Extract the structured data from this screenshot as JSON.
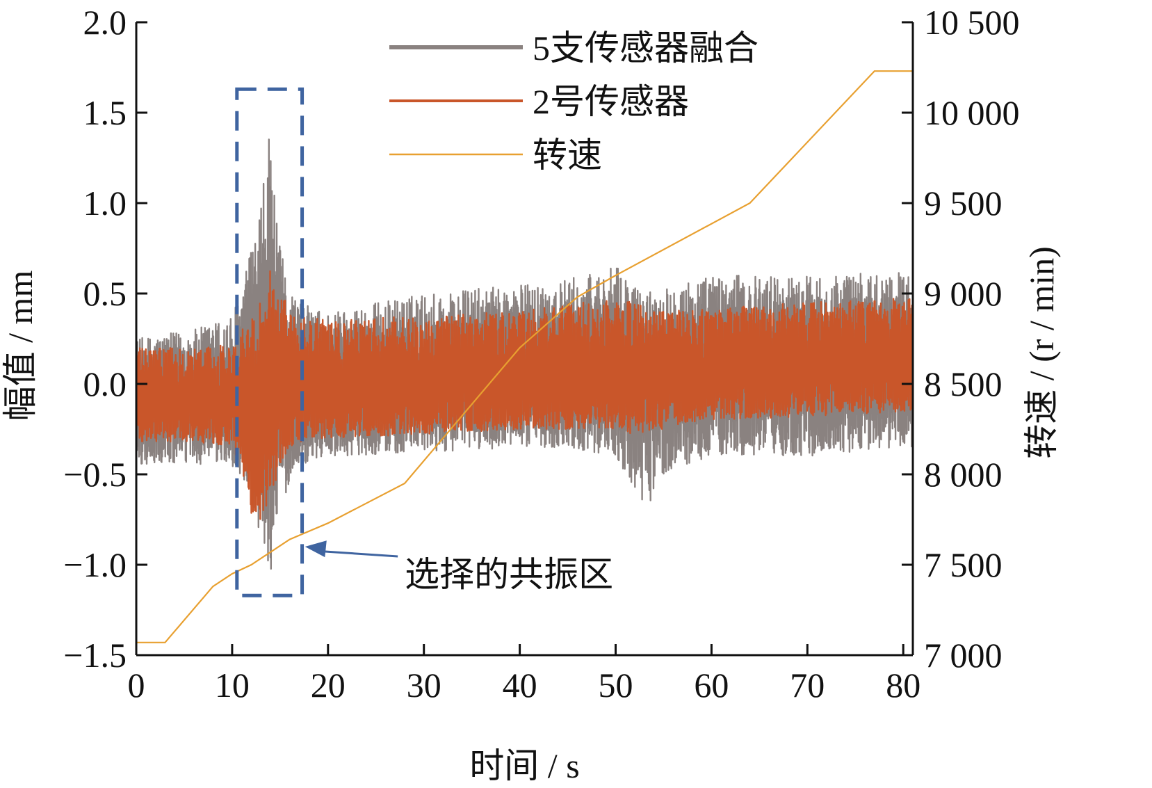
{
  "chart_data": {
    "type": "line",
    "xlabel": "时间 / s",
    "ylabel_left": "幅值 / mm",
    "ylabel_right": "转速 / (r / min)",
    "xlim": [
      0,
      81
    ],
    "xticks": [
      0,
      10,
      20,
      30,
      40,
      50,
      60,
      70,
      80
    ],
    "xtick_labels": [
      "0",
      "10",
      "20",
      "30",
      "40",
      "50",
      "60",
      "70",
      "80"
    ],
    "ylim_left": [
      -1.5,
      2.0
    ],
    "yticks_left": [
      -1.5,
      -1.0,
      -0.5,
      0.0,
      0.5,
      1.0,
      1.5,
      2.0
    ],
    "ytick_labels_left": [
      "−1.5",
      "−1.0",
      "−0.5",
      "0.0",
      "0.5",
      "1.0",
      "1.5",
      "2.0"
    ],
    "ylim_right": [
      7000,
      10500
    ],
    "yticks_right": [
      7000,
      7500,
      8000,
      8500,
      9000,
      9500,
      10000,
      10500
    ],
    "ytick_labels_right": [
      "7 000",
      "7 500",
      "8 000",
      "8 500",
      "9 000",
      "9 500",
      "10 000",
      "10 500"
    ],
    "legend_placement": "top-center",
    "grid": false,
    "series": [
      {
        "name": "5支传感器融合",
        "axis": "left",
        "color": "#8a8280",
        "kind": "vibration",
        "envelope_t": [
          0,
          6,
          10,
          11,
          12,
          13,
          13.5,
          14,
          14.5,
          15,
          16,
          17,
          20,
          30,
          40,
          45,
          50,
          52,
          53,
          55,
          60,
          70,
          81
        ],
        "envelope_upper": [
          0.25,
          0.3,
          0.38,
          0.55,
          0.75,
          1.0,
          1.2,
          1.52,
          0.95,
          0.75,
          0.55,
          0.45,
          0.4,
          0.5,
          0.55,
          0.58,
          0.65,
          0.55,
          0.5,
          0.55,
          0.6,
          0.6,
          0.62
        ],
        "envelope_lower": [
          -0.45,
          -0.45,
          -0.45,
          -0.55,
          -0.7,
          -0.85,
          -0.95,
          -1.05,
          -0.85,
          -0.7,
          -0.55,
          -0.45,
          -0.4,
          -0.38,
          -0.35,
          -0.35,
          -0.4,
          -0.6,
          -0.72,
          -0.5,
          -0.4,
          -0.4,
          -0.35
        ],
        "center_t": [
          0,
          10,
          12,
          14,
          16,
          20,
          40,
          60,
          81
        ],
        "center": [
          -0.1,
          -0.1,
          -0.15,
          -0.2,
          -0.05,
          -0.05,
          0.0,
          0.05,
          0.1
        ]
      },
      {
        "name": "2号传感器",
        "axis": "left",
        "color": "#c9562a",
        "kind": "vibration",
        "envelope_t": [
          0,
          6,
          10,
          11,
          12,
          13,
          13.5,
          14,
          14.5,
          15,
          16,
          17,
          20,
          30,
          40,
          50,
          52,
          55,
          60,
          70,
          81
        ],
        "envelope_upper": [
          0.2,
          0.2,
          0.22,
          0.3,
          0.4,
          0.5,
          0.55,
          0.68,
          0.55,
          0.5,
          0.45,
          0.38,
          0.35,
          0.38,
          0.4,
          0.48,
          0.45,
          0.4,
          0.42,
          0.45,
          0.48
        ],
        "envelope_lower": [
          -0.32,
          -0.32,
          -0.35,
          -0.5,
          -0.75,
          -0.75,
          -0.72,
          -0.65,
          -0.55,
          -0.45,
          -0.35,
          -0.32,
          -0.3,
          -0.28,
          -0.25,
          -0.25,
          -0.28,
          -0.25,
          -0.2,
          -0.18,
          -0.15
        ],
        "center_t": [
          0,
          10,
          12,
          14,
          16,
          20,
          40,
          60,
          81
        ],
        "center": [
          -0.1,
          -0.1,
          -0.2,
          -0.1,
          -0.05,
          -0.05,
          0.0,
          0.05,
          0.1
        ]
      },
      {
        "name": "转速",
        "axis": "right",
        "color": "#e8a030",
        "kind": "line",
        "x": [
          0,
          3,
          8,
          10,
          12,
          14,
          16,
          20,
          28,
          40,
          46,
          50,
          64,
          77,
          81
        ],
        "y": [
          7070,
          7070,
          7380,
          7450,
          7500,
          7570,
          7640,
          7730,
          7950,
          8700,
          8980,
          9100,
          9500,
          10230,
          10230
        ]
      }
    ],
    "annotations": [
      {
        "type": "dashed-box",
        "label": "选择的共振区",
        "color": "#3f64a0",
        "x_range": [
          10.5,
          17.3
        ],
        "y_range": [
          -1.17,
          1.63
        ],
        "arrow_to": [
          17.6,
          -0.9
        ],
        "label_at": [
          28,
          -1.05
        ]
      }
    ]
  }
}
